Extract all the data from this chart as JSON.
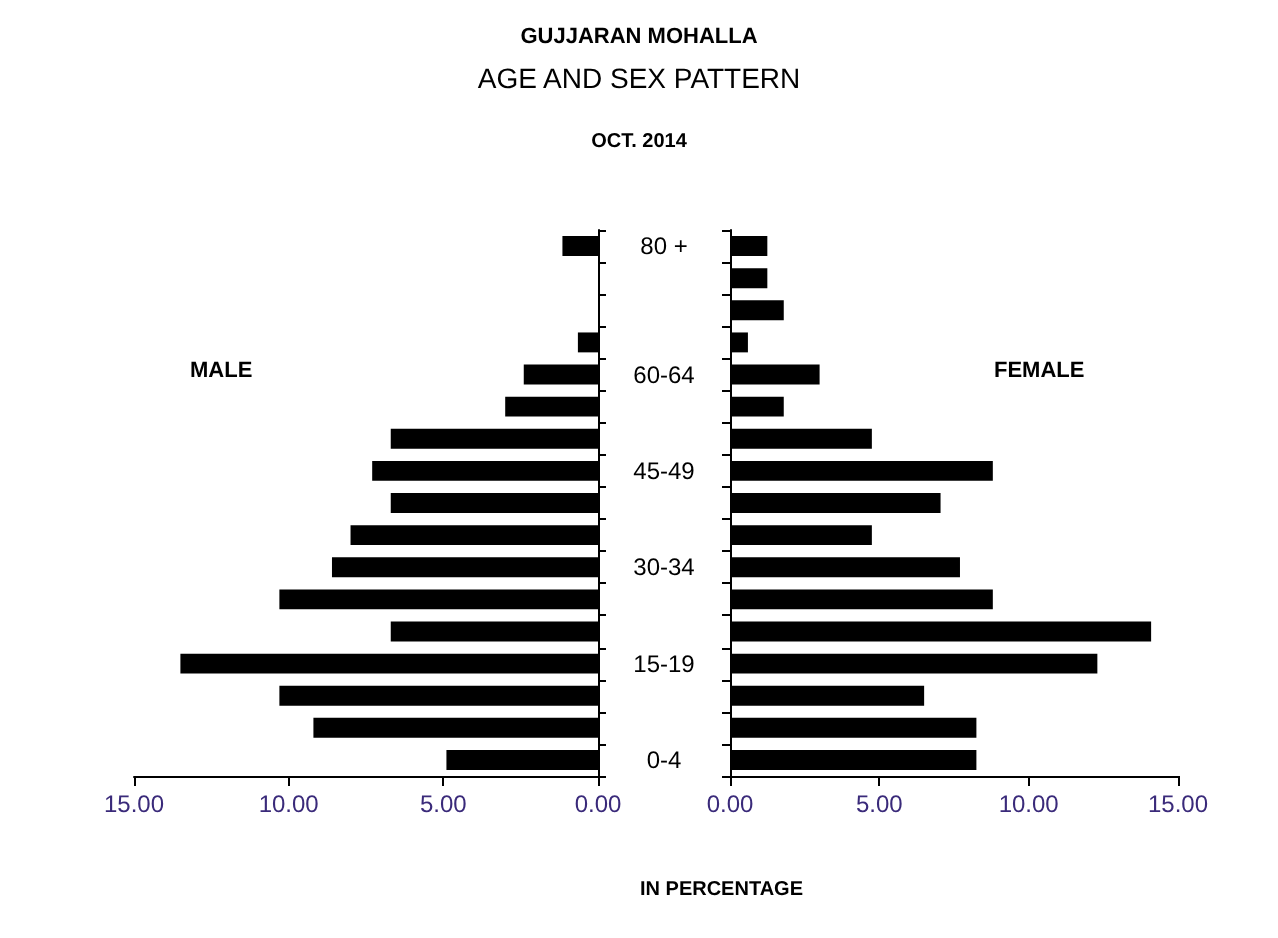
{
  "chart_data": [
    {
      "type": "bar",
      "orientation": "horizontal",
      "title": "GUJJARAN MOHALLA",
      "subtitle": "AGE AND SEX PATTERN",
      "annotations": [
        "OCT. 2014"
      ],
      "categories": [
        null,
        null,
        null,
        null,
        null,
        null,
        null,
        null,
        null,
        null,
        null,
        null,
        null,
        null,
        null,
        null,
        null
      ],
      "series": [
        {
          "name": "MALE",
          "color": "#000000",
          "values": [
            1.15,
            0,
            0,
            0.65,
            2.4,
            3.0,
            6.7,
            7.3,
            6.7,
            8.0,
            8.6,
            10.3,
            6.7,
            13.5,
            10.3,
            9.2,
            4.9
          ]
        }
      ],
      "xlim": [
        15,
        0
      ],
      "xticks": [
        {
          "value": 0,
          "label": "0.00"
        },
        {
          "value": 5,
          "label": "5.00"
        },
        {
          "value": 10,
          "label": "10.00"
        },
        {
          "value": 15,
          "label": "15.00"
        }
      ],
      "legend": false
    },
    {
      "type": "bar",
      "orientation": "horizontal",
      "xlabel": "IN PERCENTAGE",
      "categories": [
        "80 +",
        null,
        null,
        null,
        "60-64",
        null,
        null,
        "45-49",
        null,
        null,
        "30-34",
        null,
        null,
        "15-19",
        null,
        null,
        "0-4"
      ],
      "series": [
        {
          "name": "FEMALE",
          "color": "#000000",
          "values": [
            1.25,
            1.25,
            1.8,
            0.6,
            3.0,
            1.8,
            4.75,
            8.8,
            7.05,
            4.75,
            7.7,
            8.8,
            14.1,
            12.3,
            6.5,
            8.25,
            8.25
          ]
        }
      ],
      "xlim": [
        0,
        15
      ],
      "xticks": [
        {
          "value": 0,
          "label": "0.00"
        },
        {
          "value": 5,
          "label": "5.00"
        },
        {
          "value": 10,
          "label": "10.00"
        },
        {
          "value": 15,
          "label": "15.00"
        }
      ],
      "legend": false
    }
  ]
}
